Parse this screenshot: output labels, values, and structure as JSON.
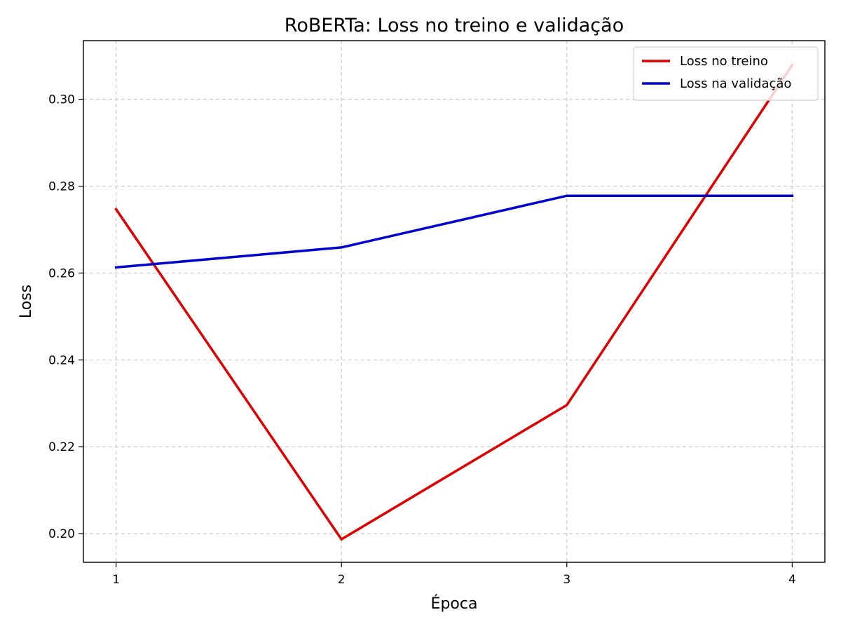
{
  "chart_data": {
    "type": "line",
    "title": "RoBERTa: Loss no treino e validação",
    "xlabel": "Época",
    "ylabel": "Loss",
    "x": [
      1,
      2,
      3,
      4
    ],
    "xlim": [
      0.855,
      4.145
    ],
    "ylim": [
      0.1934,
      0.3135
    ],
    "xticks": [
      1,
      2,
      3,
      4
    ],
    "yticks": [
      0.2,
      0.22,
      0.24,
      0.26,
      0.28,
      0.3
    ],
    "grid": true,
    "legend_position": "top-right",
    "series": [
      {
        "name": "Loss no treino",
        "color": "#e00000",
        "values": [
          0.2747,
          0.1987,
          0.2296,
          0.3079
        ]
      },
      {
        "name": "Loss na validação",
        "color": "#0000d0",
        "values": [
          0.2613,
          0.2659,
          0.2778,
          0.2778
        ]
      }
    ]
  }
}
